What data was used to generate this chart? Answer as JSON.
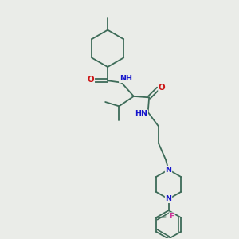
{
  "bg_color": "#eaece8",
  "bond_color": "#3d6b58",
  "N_color": "#1515cc",
  "O_color": "#cc1515",
  "F_color": "#cc3399",
  "font_size": 6.8,
  "lw": 1.3,
  "figsize": [
    3.0,
    3.0
  ],
  "dpi": 100,
  "xlim": [
    0.5,
    9.5
  ],
  "ylim": [
    0.3,
    10.3
  ]
}
